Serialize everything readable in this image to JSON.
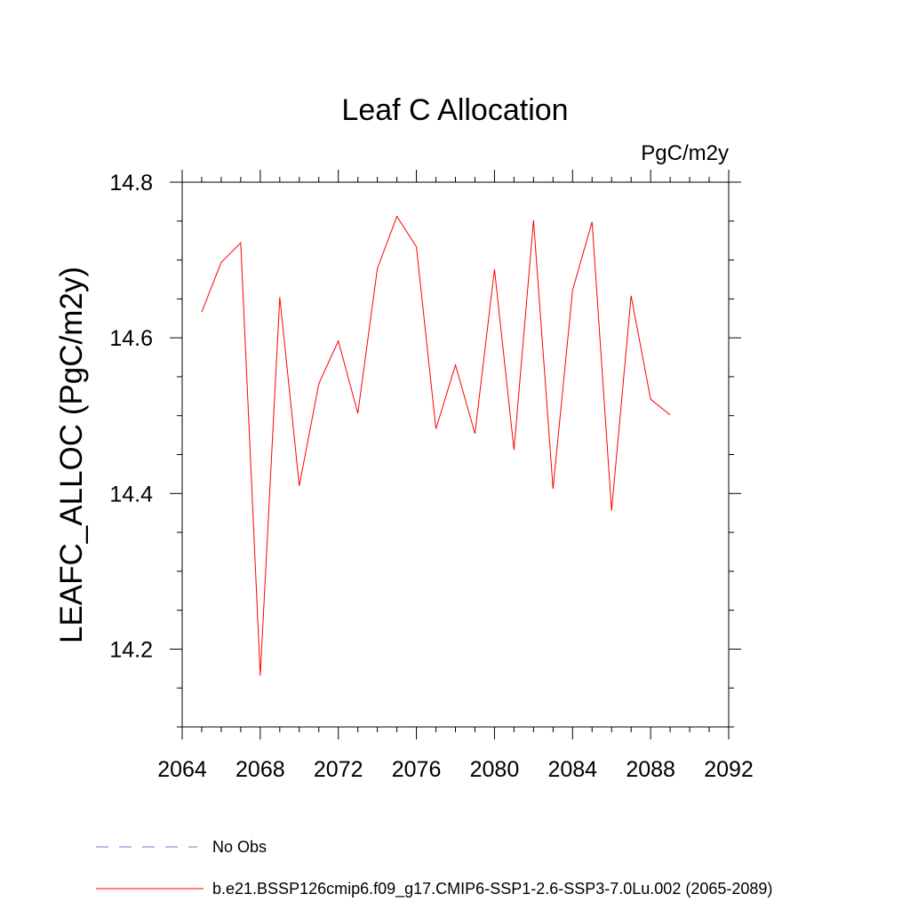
{
  "chart_data": {
    "type": "line",
    "title": "Leaf C Allocation",
    "units_label": "PgC/m2y",
    "xlabel": "",
    "ylabel": "LEAFC_ALLOC  (PgC/m2y)",
    "xlim": [
      2064,
      2092
    ],
    "ylim": [
      14.1,
      14.8
    ],
    "x_ticks": [
      2064,
      2068,
      2072,
      2076,
      2080,
      2084,
      2088,
      2092
    ],
    "x_tick_labels": [
      "2064",
      "2068",
      "2072",
      "2076",
      "2080",
      "2084",
      "2088",
      "2092"
    ],
    "x_minor_step": 1,
    "y_ticks": [
      14.2,
      14.4,
      14.6,
      14.8
    ],
    "y_tick_labels": [
      "14.2",
      "14.4",
      "14.6",
      "14.8"
    ],
    "y_minor_step": 0.05,
    "grid": false,
    "series": [
      {
        "name": "b.e21.BSSP126cmip6.f09_g17.CMIP6-SSP1-2.6-SSP3-7.0Lu.002 (2065-2089)",
        "color": "#ff0000",
        "x": [
          2065,
          2066,
          2067,
          2068,
          2069,
          2070,
          2071,
          2072,
          2073,
          2074,
          2075,
          2076,
          2077,
          2078,
          2079,
          2080,
          2081,
          2082,
          2083,
          2084,
          2085,
          2086,
          2087,
          2088,
          2089
        ],
        "values": [
          14.633,
          14.697,
          14.722,
          14.166,
          14.652,
          14.41,
          14.541,
          14.596,
          14.503,
          14.689,
          14.756,
          14.717,
          14.483,
          14.565,
          14.477,
          14.688,
          14.456,
          14.751,
          14.406,
          14.661,
          14.749,
          14.378,
          14.654,
          14.521,
          14.501
        ]
      }
    ],
    "legend": {
      "position": "bottom-left",
      "entries": [
        {
          "label": "No Obs",
          "color": "#7a6fd6",
          "style": "dashed"
        },
        {
          "label": "b.e21.BSSP126cmip6.f09_g17.CMIP6-SSP1-2.6-SSP3-7.0Lu.002 (2065-2089)",
          "color": "#ff0000",
          "style": "solid"
        }
      ]
    }
  }
}
